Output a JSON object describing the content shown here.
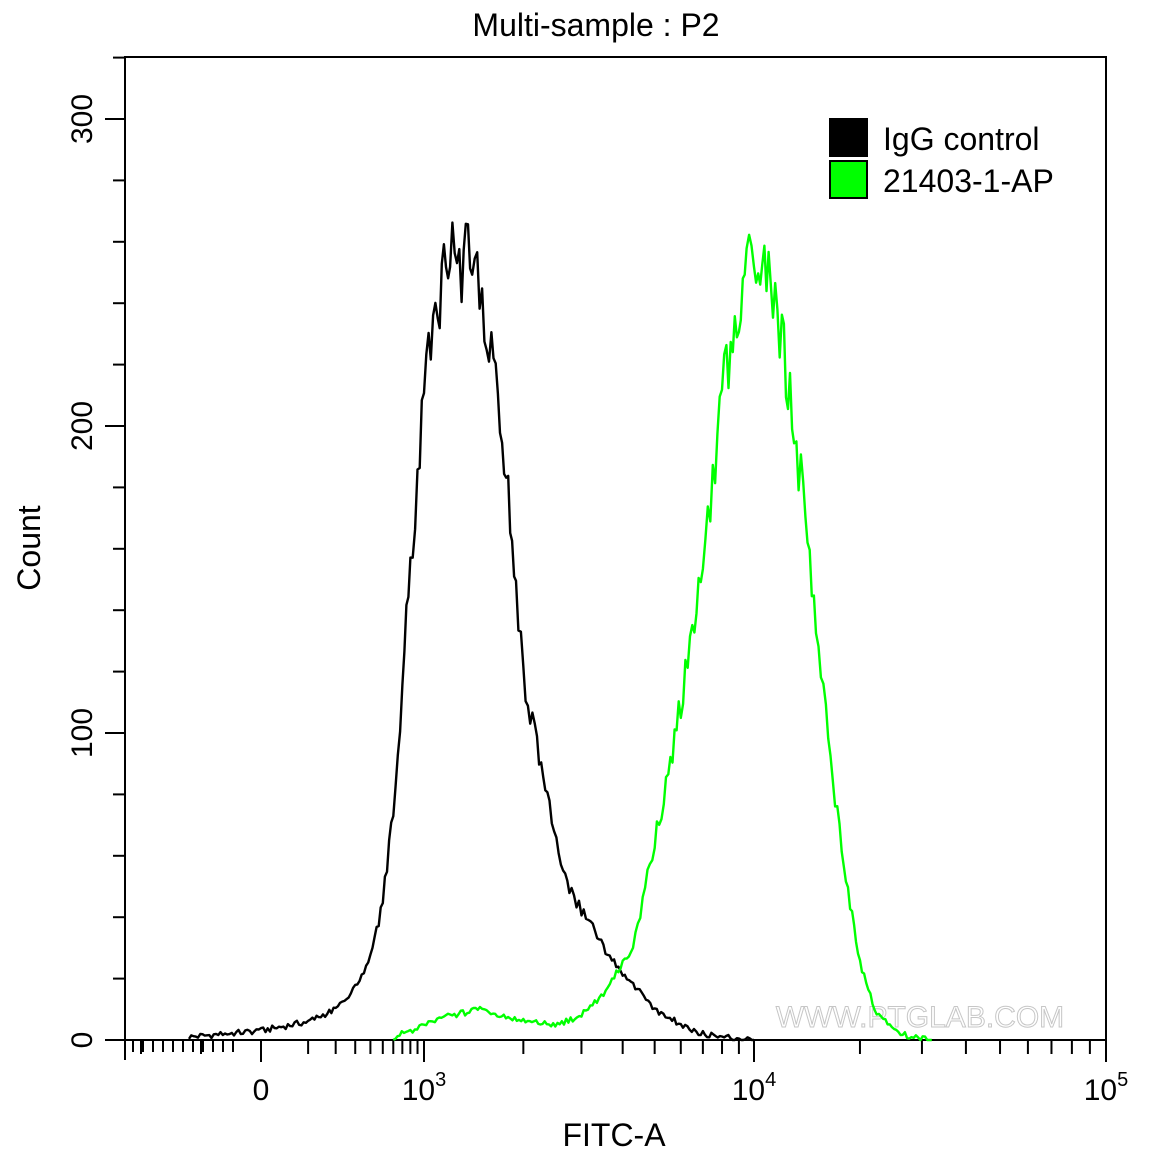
{
  "chart_data": {
    "type": "area",
    "title": "Multi-sample : P2",
    "xlabel": "FITC-A",
    "ylabel": "Count",
    "x_scale": "biexponential",
    "xlim": [
      -300,
      100000
    ],
    "ylim": [
      0,
      320
    ],
    "y_ticks": [
      0,
      100,
      200,
      300
    ],
    "x_ticks": [
      {
        "value": 0,
        "label": "0"
      },
      {
        "value": 1000,
        "base": "10",
        "exp": "3"
      },
      {
        "value": 10000,
        "base": "10",
        "exp": "4"
      },
      {
        "value": 100000,
        "base": "10",
        "exp": "5"
      }
    ],
    "legend_position": "top-right",
    "grid": false,
    "series": [
      {
        "name": "IgG control",
        "color": "#000000",
        "x": [
          -120,
          -60,
          0,
          100,
          200,
          300,
          400,
          500,
          600,
          700,
          800,
          900,
          1000,
          1100,
          1200,
          1300,
          1400,
          1500,
          1600,
          1700,
          1800,
          1900,
          2000,
          2200,
          2400,
          2600,
          2800,
          3000,
          3300,
          3600,
          4000,
          4500,
          5000,
          6000,
          7000,
          8000,
          10000
        ],
        "y": [
          1,
          2,
          3,
          6,
          10,
          17,
          27,
          45,
          75,
          115,
          155,
          180,
          210,
          240,
          255,
          250,
          258,
          245,
          220,
          205,
          175,
          150,
          120,
          95,
          75,
          60,
          48,
          42,
          35,
          28,
          22,
          16,
          10,
          5,
          2,
          1,
          0
        ]
      },
      {
        "name": "21403-1-AP",
        "color": "#00ff00",
        "x": [
          600,
          800,
          1000,
          1200,
          1500,
          2000,
          2500,
          3000,
          3500,
          4000,
          4300,
          4600,
          5000,
          5500,
          6000,
          6500,
          7000,
          7500,
          8000,
          8500,
          9000,
          9500,
          10000,
          11000,
          12000,
          13000,
          14000,
          15000,
          16000,
          17000,
          18000,
          19000,
          20000,
          22000,
          25000,
          28000,
          32000
        ],
        "y": [
          1,
          3,
          5,
          8,
          10,
          6,
          5,
          8,
          15,
          25,
          30,
          45,
          65,
          85,
          110,
          130,
          160,
          180,
          210,
          225,
          240,
          250,
          255,
          245,
          230,
          200,
          170,
          135,
          105,
          80,
          55,
          40,
          25,
          10,
          3,
          1,
          0
        ]
      }
    ]
  },
  "watermark": "WWW.PTGLAB.COM"
}
